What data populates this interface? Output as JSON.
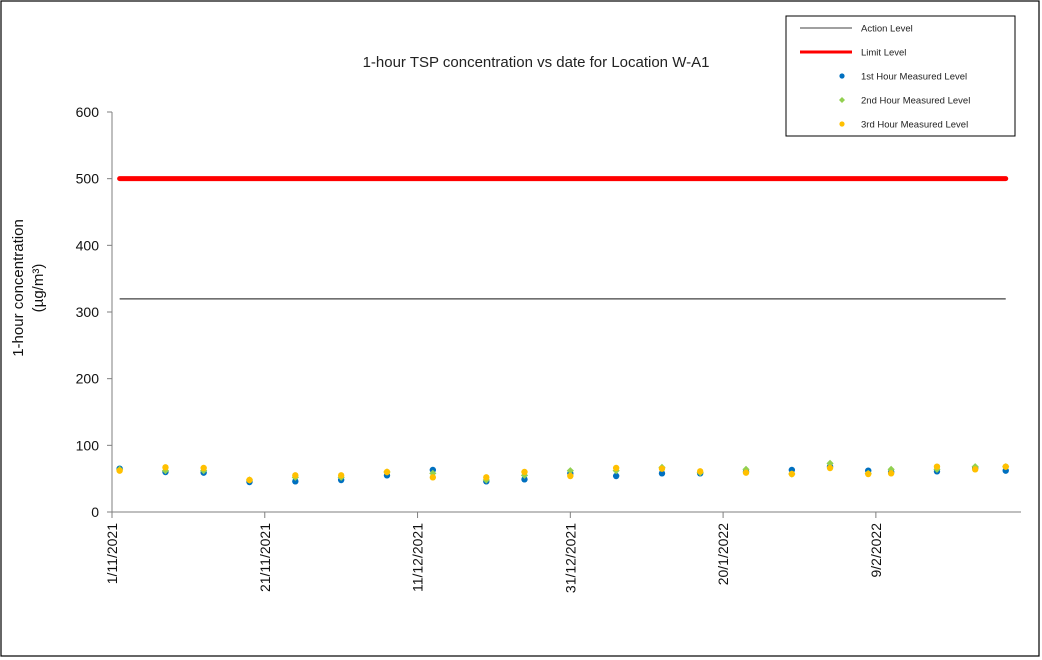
{
  "chart_data": {
    "type": "scatter",
    "title": "1-hour TSP concentration vs date for Location W-A1",
    "ylabel_line1": "1-hour concentration",
    "ylabel_line2": "(µg/m³)",
    "xlabel": "",
    "ylim": [
      0,
      600
    ],
    "yticks": [
      0,
      100,
      200,
      300,
      400,
      500,
      600
    ],
    "x_tick_labels": [
      "1/11/2021",
      "21/11/2021",
      "11/12/2021",
      "31/12/2021",
      "20/1/2022",
      "9/2/2022"
    ],
    "x_tick_dates": [
      "2021-11-01",
      "2021-11-21",
      "2021-12-11",
      "2021-12-31",
      "2022-01-20",
      "2022-02-09"
    ],
    "xlim": [
      "2021-11-01",
      "2022-02-28"
    ],
    "grid": false,
    "legend_position": "top-right",
    "reference_lines": [
      {
        "name": "Action Level",
        "value": 319.7,
        "x_start": "2021-11-02",
        "x_end": "2022-02-26",
        "color": "#404040"
      },
      {
        "name": "Limit Level",
        "value": 500,
        "x_start": "2021-11-02",
        "x_end": "2022-02-26",
        "color": "#ff0000"
      }
    ],
    "series": [
      {
        "name": "1st Hour Measured Level",
        "color": "#0070c0",
        "x": [
          "2021-11-02",
          "2021-11-08",
          "2021-11-13",
          "2021-11-19",
          "2021-11-25",
          "2021-12-01",
          "2021-12-07",
          "2021-12-13",
          "2021-12-20",
          "2021-12-25",
          "2021-12-31",
          "2022-01-06",
          "2022-01-12",
          "2022-01-17",
          "2022-01-23",
          "2022-01-29",
          "2022-02-03",
          "2022-02-08",
          "2022-02-11",
          "2022-02-17",
          "2022-02-22",
          "2022-02-26"
        ],
        "y": [
          65,
          60,
          59,
          45,
          46,
          48,
          55,
          63,
          46,
          49,
          58,
          54,
          58,
          58,
          61,
          63,
          68,
          62,
          60,
          61,
          66,
          62
        ]
      },
      {
        "name": "2nd Hour Measured Level",
        "color": "#92d050",
        "x": [
          "2021-11-02",
          "2021-11-08",
          "2021-11-13",
          "2021-11-19",
          "2021-11-25",
          "2021-12-01",
          "2021-12-07",
          "2021-12-13",
          "2021-12-20",
          "2021-12-25",
          "2021-12-31",
          "2022-01-06",
          "2022-01-12",
          "2022-01-17",
          "2022-01-23",
          "2022-01-29",
          "2022-02-03",
          "2022-02-08",
          "2022-02-11",
          "2022-02-17",
          "2022-02-22",
          "2022-02-26"
        ],
        "y": [
          64,
          62,
          62,
          48,
          52,
          52,
          60,
          58,
          48,
          55,
          62,
          62,
          67,
          59,
          64,
          57,
          73,
          58,
          64,
          64,
          68,
          68
        ]
      },
      {
        "name": "3rd Hour Measured Level",
        "color": "#ffc000",
        "x": [
          "2021-11-02",
          "2021-11-08",
          "2021-11-13",
          "2021-11-19",
          "2021-11-25",
          "2021-12-01",
          "2021-12-07",
          "2021-12-13",
          "2021-12-20",
          "2021-12-25",
          "2021-12-31",
          "2022-01-06",
          "2022-01-12",
          "2022-01-17",
          "2022-01-23",
          "2022-01-29",
          "2022-02-03",
          "2022-02-08",
          "2022-02-11",
          "2022-02-17",
          "2022-02-22",
          "2022-02-26"
        ],
        "y": [
          62,
          67,
          66,
          48,
          55,
          55,
          60,
          52,
          52,
          60,
          54,
          66,
          65,
          61,
          59,
          57,
          66,
          57,
          58,
          68,
          64,
          68
        ]
      }
    ]
  }
}
